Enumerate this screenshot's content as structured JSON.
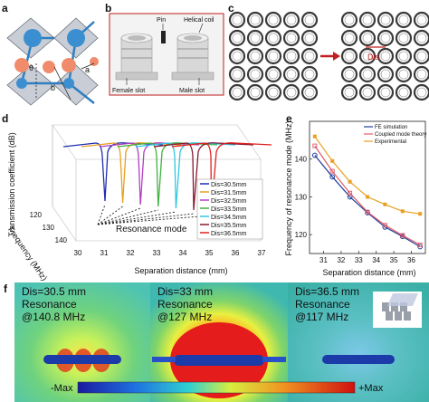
{
  "panel_labels": {
    "a": "a",
    "b": "b",
    "c": "c",
    "d": "d",
    "e": "e",
    "f": "f"
  },
  "panel_a": {
    "theta": "θ",
    "label_b": "b",
    "label_a": "a"
  },
  "panel_b": {
    "pin": "Pin",
    "helical_coil": "Helical coil",
    "female_slot": "Female slot",
    "male_slot": "Male slot"
  },
  "panel_c": {
    "dis": "Dis"
  },
  "panel_d": {
    "ylabel": "Transmission coefficient (dB)",
    "flabel": "Frequency (MHz)",
    "xlabel": "Separation distance (mm)",
    "resonance_mode": "Resonance  mode",
    "x_ticks": [
      "30",
      "31",
      "32",
      "33",
      "34",
      "35",
      "36",
      "37"
    ],
    "f_ticks": [
      "120",
      "130",
      "140"
    ],
    "legend": [
      "Dis=30.5mm",
      "Dis=31.5mm",
      "Dis=32.5mm",
      "Dis=33.5mm",
      "Dis=34.5mm",
      "Dis=35.5mm",
      "Dis=36.5mm"
    ]
  },
  "chart_data": {
    "type": "line",
    "xlabel": "Separation distance (mm)",
    "ylabel": "Frequency of resonance mode (MHz)",
    "x": [
      30.5,
      31.5,
      32.5,
      33.5,
      34.5,
      35.5,
      36.5
    ],
    "xlim": [
      30.2,
      36.8
    ],
    "ylim": [
      115,
      150
    ],
    "x_ticks": [
      31,
      32,
      33,
      34,
      35,
      36
    ],
    "y_ticks": [
      120,
      130,
      140
    ],
    "legend_position": "top-right",
    "series": [
      {
        "name": "FE simulation",
        "color": "#1f3f9a",
        "values": [
          141.0,
          135.3,
          130.0,
          125.8,
          122.0,
          119.5,
          116.8
        ]
      },
      {
        "name": "Coupled mode theory",
        "color": "#e05a6a",
        "values": [
          143.5,
          136.8,
          131.0,
          126.0,
          122.5,
          119.8,
          117.3
        ]
      },
      {
        "name": "Experimental",
        "color": "#e8a020",
        "values": [
          146.0,
          139.5,
          134.0,
          130.0,
          128.0,
          126.2,
          125.5
        ]
      }
    ]
  },
  "panel_f": {
    "maps": [
      {
        "dis": "Dis=30.5 mm",
        "res": "Resonance",
        "freq": "@140.8 MHz"
      },
      {
        "dis": "Dis=33 mm",
        "res": "Resonance",
        "freq": "@127 MHz"
      },
      {
        "dis": "Dis=36.5 mm",
        "res": "Resonance",
        "freq": "@117 MHz"
      }
    ],
    "colorbar_min": "-Max",
    "colorbar_max": "+Max"
  }
}
